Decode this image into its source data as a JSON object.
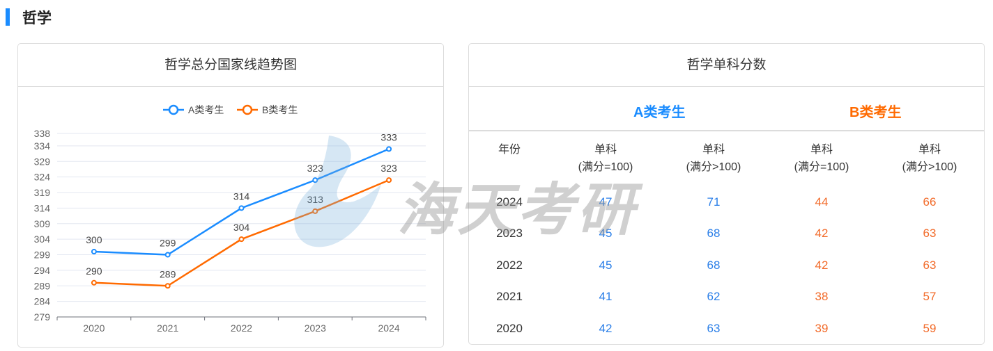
{
  "section": {
    "title": "哲学"
  },
  "trend_card": {
    "title": "哲学总分国家线趋势图"
  },
  "score_card": {
    "title": "哲学单科分数",
    "group_a": "A类考生",
    "group_b": "B类考生",
    "headers": [
      [
        "年份",
        ""
      ],
      [
        "单科",
        "(满分=100)"
      ],
      [
        "单科",
        "(满分>100)"
      ],
      [
        "单科",
        "(满分=100)"
      ],
      [
        "单科",
        "(满分>100)"
      ]
    ],
    "rows": [
      [
        "2024",
        "47",
        "71",
        "44",
        "66"
      ],
      [
        "2023",
        "45",
        "68",
        "42",
        "63"
      ],
      [
        "2022",
        "45",
        "68",
        "42",
        "63"
      ],
      [
        "2021",
        "41",
        "62",
        "38",
        "57"
      ],
      [
        "2020",
        "42",
        "63",
        "39",
        "59"
      ]
    ]
  },
  "watermark": "海天考研",
  "colors": {
    "accent": "#1a8cff",
    "a": "#1a8cff",
    "b": "#ff6a00",
    "a_text": "#2b7fe8",
    "b_text": "#f26b2a"
  },
  "chart_data": {
    "type": "line",
    "categories": [
      "2020",
      "2021",
      "2022",
      "2023",
      "2024"
    ],
    "series": [
      {
        "name": "A类考生",
        "values": [
          300,
          299,
          314,
          323,
          333
        ]
      },
      {
        "name": "B类考生",
        "values": [
          290,
          289,
          304,
          313,
          323
        ]
      }
    ],
    "yticks": [
      279,
      284,
      289,
      294,
      299,
      304,
      309,
      314,
      319,
      324,
      329,
      334,
      338
    ],
    "ylim": [
      279,
      338
    ],
    "grid": true,
    "legend": "top-center",
    "data_labels": true
  }
}
